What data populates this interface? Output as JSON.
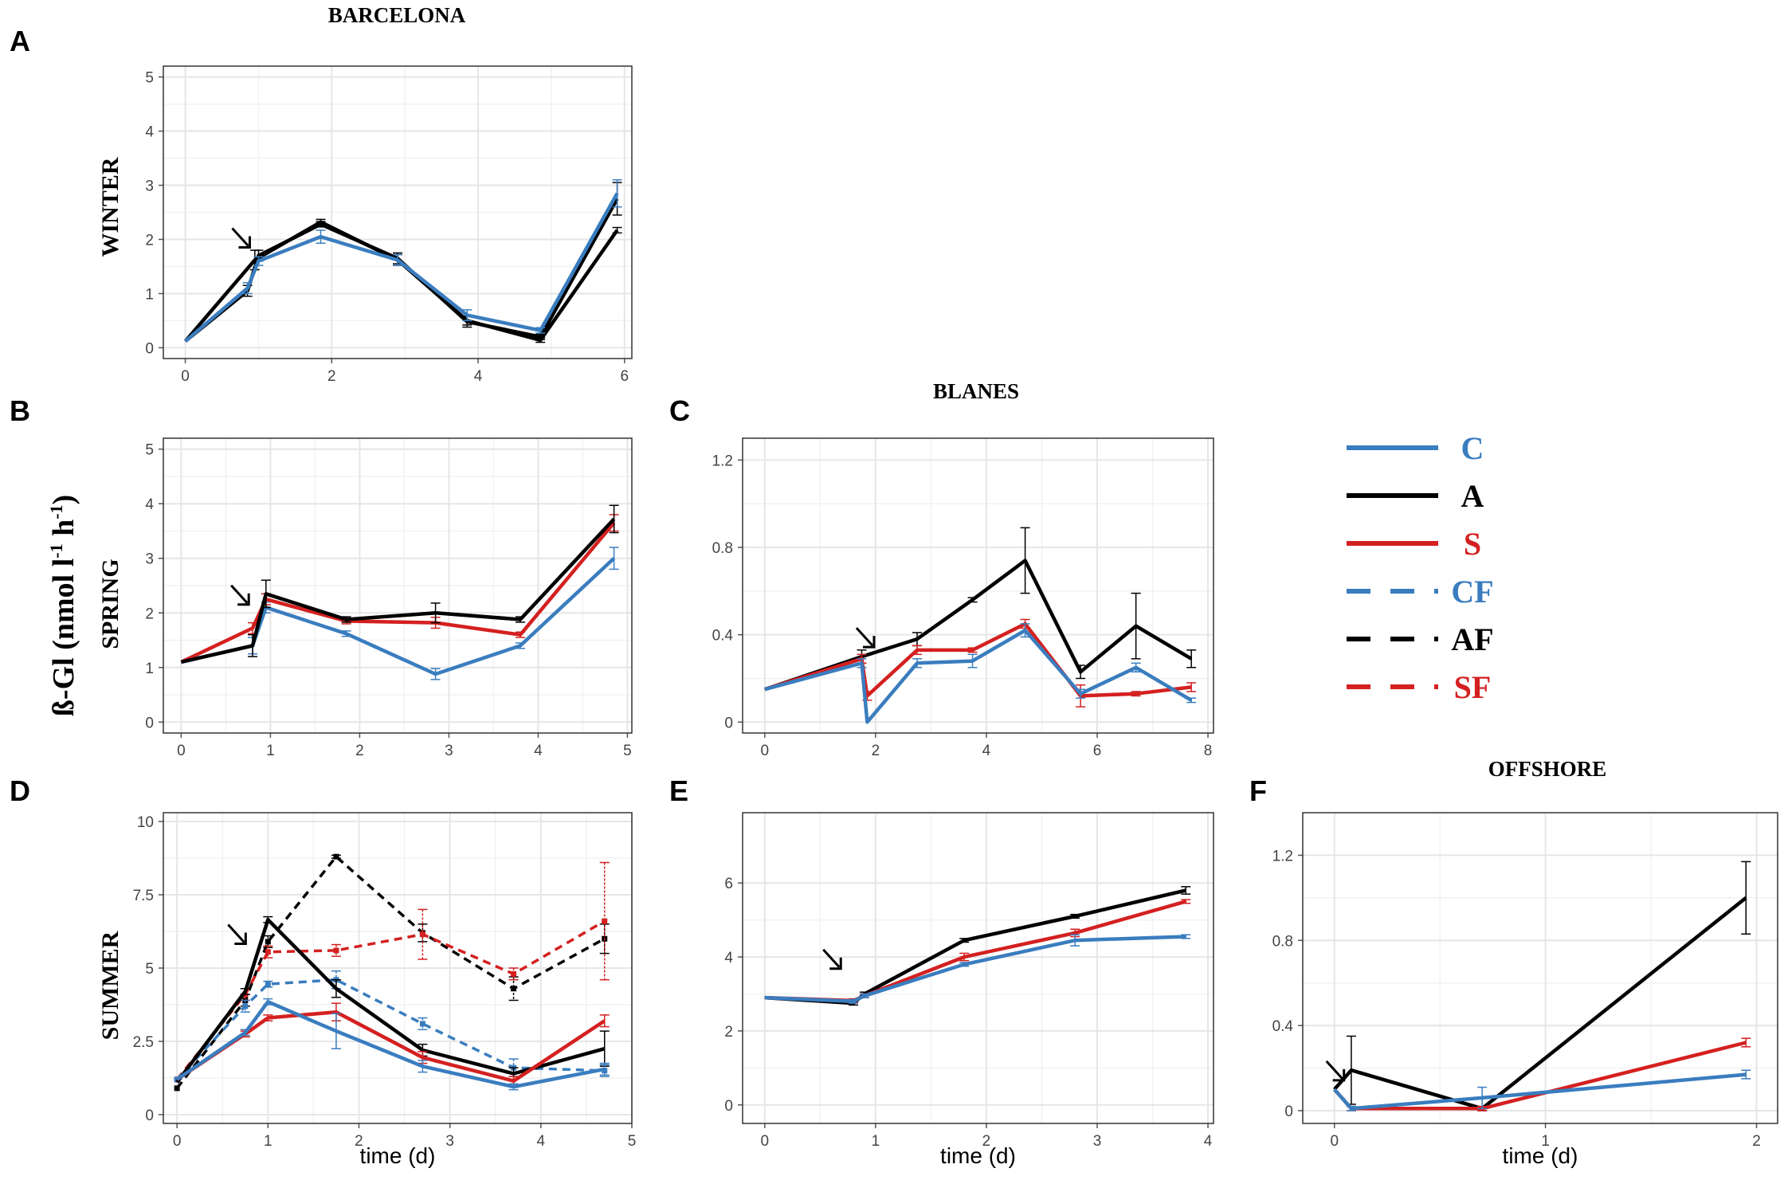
{
  "figure": {
    "site_headers": [
      "BARCELONA",
      "BLANES",
      "OFFSHORE"
    ],
    "y_axis_label": "ß-Gl (nmol l",
    "y_axis_sup1": "-1",
    "y_axis_mid": " h",
    "y_axis_sup2": "-1",
    "y_axis_end": ")",
    "season_labels": [
      "WINTER",
      "SPRING",
      "SUMMER"
    ],
    "x_axis_label": "time (d)"
  },
  "legend": [
    {
      "label": "C",
      "color": "#3a7dbf",
      "dash": false
    },
    {
      "label": "A",
      "color": "#000000",
      "dash": false
    },
    {
      "label": "S",
      "color": "#d42020",
      "dash": false
    },
    {
      "label": "CF",
      "color": "#3a7dbf",
      "dash": true
    },
    {
      "label": "AF",
      "color": "#000000",
      "dash": true
    },
    {
      "label": "SF",
      "color": "#d42020",
      "dash": true
    }
  ],
  "colors": {
    "C": "#3a7dbf",
    "A": "#000000",
    "S": "#d42020",
    "CF": "#3a7dbf",
    "AF": "#000000",
    "SF": "#d42020"
  },
  "chart_data": [
    {
      "panel": "A",
      "site": "BARCELONA",
      "season": "WINTER",
      "type": "line",
      "xlim": [
        -0.3,
        6.1
      ],
      "ylim": [
        -0.2,
        5.2
      ],
      "xticks": [
        0,
        2,
        4,
        6
      ],
      "yticks": [
        0,
        1,
        2,
        3,
        4,
        5
      ],
      "xlabel": "",
      "arrow": {
        "x": 0.75,
        "y": 2.0
      },
      "series": [
        {
          "name": "A",
          "x": [
            0,
            0.95,
            1.85,
            2.9,
            3.85,
            4.85,
            5.9
          ],
          "y": [
            0.12,
            1.62,
            2.32,
            1.62,
            0.5,
            0.14,
            2.17
          ],
          "err": [
            0,
            0.18,
            0.05,
            0.1,
            0.08,
            0.04,
            0.05
          ]
        },
        {
          "name": "A",
          "x": [
            0,
            0.85,
            1.0,
            1.85,
            2.9,
            3.85,
            4.85,
            5.9
          ],
          "y": [
            0.12,
            1.05,
            1.7,
            2.28,
            1.65,
            0.48,
            0.2,
            2.75
          ],
          "err": [
            0,
            0.1,
            0.1,
            0.05,
            0.1,
            0.1,
            0.05,
            0.3
          ]
        },
        {
          "name": "C",
          "x": [
            0,
            0.85,
            1.0,
            1.85,
            2.9,
            3.85,
            4.85,
            5.9
          ],
          "y": [
            0.12,
            1.1,
            1.6,
            2.05,
            1.62,
            0.6,
            0.32,
            2.85
          ],
          "err": [
            0,
            0.1,
            0.08,
            0.12,
            0.1,
            0.1,
            0.05,
            0.25
          ]
        }
      ]
    },
    {
      "panel": "B",
      "site": "BARCELONA",
      "season": "SPRING",
      "type": "line",
      "xlim": [
        -0.2,
        5.05
      ],
      "ylim": [
        -0.2,
        5.2
      ],
      "xticks": [
        0,
        1,
        2,
        3,
        4,
        5
      ],
      "yticks": [
        0,
        1,
        2,
        3,
        4,
        5
      ],
      "xlabel": "",
      "arrow": {
        "x": 0.65,
        "y": 2.3
      },
      "series": [
        {
          "name": "C",
          "x": [
            0,
            0.8,
            0.95,
            1.85,
            2.85,
            3.8,
            4.85
          ],
          "y": [
            1.1,
            1.4,
            2.1,
            1.62,
            0.88,
            1.4,
            3.0
          ],
          "err": [
            0,
            0.15,
            0.1,
            0.05,
            0.1,
            0.05,
            0.2
          ]
        },
        {
          "name": "S",
          "x": [
            0,
            0.8,
            0.95,
            1.85,
            2.85,
            3.8,
            4.85
          ],
          "y": [
            1.1,
            1.72,
            2.25,
            1.85,
            1.82,
            1.6,
            3.65
          ],
          "err": [
            0,
            0.1,
            0.1,
            0.05,
            0.1,
            0.05,
            0.15
          ]
        },
        {
          "name": "A",
          "x": [
            0,
            0.8,
            0.95,
            1.85,
            2.85,
            3.8,
            4.85
          ],
          "y": [
            1.1,
            1.4,
            2.35,
            1.88,
            2.0,
            1.88,
            3.72
          ],
          "err": [
            0,
            0.2,
            0.25,
            0.05,
            0.18,
            0.05,
            0.25
          ]
        }
      ]
    },
    {
      "panel": "C",
      "site": "BLANES",
      "season": "SPRING",
      "type": "line",
      "xlim": [
        -0.4,
        8.1
      ],
      "ylim": [
        -0.05,
        1.3
      ],
      "xticks": [
        0,
        2,
        4,
        6,
        8
      ],
      "yticks": [
        0.0,
        0.4,
        0.8,
        1.2
      ],
      "xlabel": "",
      "arrow": {
        "x": 1.8,
        "y": 0.38
      },
      "series": [
        {
          "name": "A",
          "x": [
            0,
            1.75,
            2.75,
            3.75,
            4.7,
            5.7,
            6.7,
            7.7
          ],
          "y": [
            0.15,
            0.3,
            0.38,
            0.56,
            0.74,
            0.23,
            0.44,
            0.29
          ],
          "err": [
            0,
            0.03,
            0.03,
            0.01,
            0.15,
            0.03,
            0.15,
            0.04
          ]
        },
        {
          "name": "S",
          "x": [
            0,
            1.75,
            1.85,
            2.75,
            3.75,
            4.7,
            5.7,
            6.7,
            7.7
          ],
          "y": [
            0.15,
            0.29,
            0.12,
            0.33,
            0.33,
            0.45,
            0.12,
            0.13,
            0.16
          ],
          "err": [
            0,
            0.02,
            0.02,
            0.02,
            0.01,
            0.02,
            0.05,
            0.01,
            0.02
          ]
        },
        {
          "name": "C",
          "x": [
            0,
            1.75,
            1.85,
            2.75,
            3.75,
            4.7,
            5.7,
            6.7,
            7.7
          ],
          "y": [
            0.15,
            0.27,
            0.0,
            0.27,
            0.28,
            0.42,
            0.13,
            0.25,
            0.1
          ],
          "err": [
            0,
            0.02,
            0.0,
            0.02,
            0.03,
            0.03,
            0.02,
            0.02,
            0.01
          ]
        }
      ]
    },
    {
      "panel": "D",
      "site": "BARCELONA",
      "season": "SUMMER",
      "type": "line",
      "xlim": [
        -0.15,
        5.0
      ],
      "ylim": [
        -0.3,
        10.3
      ],
      "xticks": [
        0,
        1,
        2,
        3,
        4,
        5
      ],
      "yticks": [
        0,
        2.5,
        5.0,
        7.5,
        10.0
      ],
      "xlabel": "time (d)",
      "arrow": {
        "x": 0.65,
        "y": 6.1
      },
      "series": [
        {
          "name": "AF",
          "x": [
            0,
            0.75,
            1.0,
            1.75,
            2.7,
            3.7,
            4.7
          ],
          "y": [
            0.9,
            3.9,
            5.9,
            8.8,
            6.2,
            4.3,
            6.0
          ],
          "err": [
            0,
            0.2,
            0.2,
            0.05,
            0.3,
            0.4,
            0.5
          ],
          "dash": true
        },
        {
          "name": "SF",
          "x": [
            0,
            0.75,
            1.0,
            1.75,
            2.7,
            3.7,
            4.7
          ],
          "y": [
            1.2,
            4.1,
            5.55,
            5.6,
            6.15,
            4.8,
            6.6
          ],
          "err": [
            0,
            0.2,
            0.2,
            0.2,
            0.85,
            0.2,
            2.0
          ],
          "dash": true
        },
        {
          "name": "CF",
          "x": [
            0,
            0.75,
            1.0,
            1.75,
            2.7,
            3.7,
            4.7
          ],
          "y": [
            1.2,
            3.7,
            4.45,
            4.6,
            3.1,
            1.6,
            1.5
          ],
          "err": [
            0,
            0.2,
            0.1,
            0.3,
            0.2,
            0.3,
            0.2
          ],
          "dash": true
        },
        {
          "name": "A",
          "x": [
            0,
            0.75,
            1.0,
            1.75,
            2.7,
            3.7,
            4.7
          ],
          "y": [
            1.1,
            4.2,
            6.65,
            4.3,
            2.2,
            1.4,
            2.25
          ],
          "err": [
            0,
            0.1,
            0.1,
            0.3,
            0.2,
            0.2,
            0.6
          ]
        },
        {
          "name": "S",
          "x": [
            0,
            0.75,
            1.0,
            1.75,
            2.7,
            3.7,
            4.7
          ],
          "y": [
            1.2,
            2.75,
            3.3,
            3.5,
            1.95,
            1.15,
            3.2
          ],
          "err": [
            0,
            0.1,
            0.1,
            0.3,
            0.2,
            0.15,
            0.2
          ]
        },
        {
          "name": "C",
          "x": [
            0,
            0.75,
            1.0,
            1.75,
            2.7,
            3.7,
            4.7
          ],
          "y": [
            1.2,
            2.8,
            3.85,
            2.85,
            1.65,
            0.95,
            1.55
          ],
          "err": [
            0,
            0.1,
            0.1,
            0.6,
            0.2,
            0.1,
            0.2
          ]
        }
      ]
    },
    {
      "panel": "E",
      "site": "BLANES",
      "season": "SUMMER",
      "type": "line",
      "xlim": [
        -0.2,
        4.05
      ],
      "ylim": [
        -0.5,
        7.9
      ],
      "xticks": [
        0,
        1,
        2,
        3,
        4
      ],
      "yticks": [
        0,
        2,
        4,
        6
      ],
      "xlabel": "time (d)",
      "arrow": {
        "x": 0.6,
        "y": 3.9
      },
      "series": [
        {
          "name": "A",
          "x": [
            0,
            0.8,
            0.9,
            1.8,
            2.8,
            3.8
          ],
          "y": [
            2.9,
            2.75,
            3.0,
            4.45,
            5.1,
            5.8
          ],
          "err": [
            0,
            0.05,
            0.05,
            0.05,
            0.05,
            0.1
          ]
        },
        {
          "name": "S",
          "x": [
            0,
            0.8,
            0.9,
            1.8,
            2.8,
            3.8
          ],
          "y": [
            2.9,
            2.82,
            2.95,
            4.0,
            4.65,
            5.5
          ],
          "err": [
            0,
            0.05,
            0.05,
            0.1,
            0.1,
            0.05
          ]
        },
        {
          "name": "C",
          "x": [
            0,
            0.8,
            0.9,
            1.8,
            2.8,
            3.8
          ],
          "y": [
            2.9,
            2.8,
            2.95,
            3.8,
            4.45,
            4.55
          ],
          "err": [
            0,
            0.05,
            0.05,
            0.05,
            0.15,
            0.05
          ]
        }
      ]
    },
    {
      "panel": "F",
      "site": "OFFSHORE",
      "season": "SUMMER",
      "type": "line",
      "xlim": [
        -0.15,
        2.1
      ],
      "ylim": [
        -0.06,
        1.4
      ],
      "xticks": [
        0,
        1,
        2
      ],
      "yticks": [
        0.0,
        0.4,
        0.8,
        1.2
      ],
      "xlabel": "time (d)",
      "arrow": {
        "x": 0.0,
        "y": 0.18
      },
      "series": [
        {
          "name": "A",
          "x": [
            0,
            0.08,
            0.7,
            1.95
          ],
          "y": [
            0.1,
            0.19,
            0.01,
            1.0
          ],
          "err": [
            0,
            0.16,
            0.01,
            0.17
          ]
        },
        {
          "name": "S",
          "x": [
            0,
            0.08,
            0.7,
            1.95
          ],
          "y": [
            0.1,
            0.01,
            0.01,
            0.32
          ],
          "err": [
            0,
            0.01,
            0.01,
            0.02
          ]
        },
        {
          "name": "C",
          "x": [
            0,
            0.08,
            0.7,
            1.95
          ],
          "y": [
            0.1,
            0.01,
            0.06,
            0.17
          ],
          "err": [
            0,
            0.01,
            0.05,
            0.02
          ]
        }
      ]
    }
  ]
}
